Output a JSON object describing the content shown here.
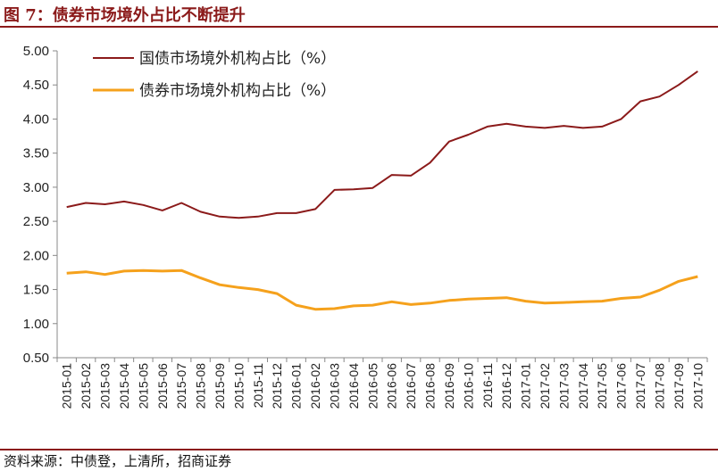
{
  "figure_title": "图 7：债券市场境外占比不断提升",
  "source_note": "资料来源：中债登，上清所，招商证券",
  "colors": {
    "brand": "#8B1A1A",
    "series_1": "#8B1A1A",
    "series_2": "#F5A11C"
  },
  "chart_data": {
    "type": "line",
    "title": "",
    "xlabel": "",
    "ylabel": "",
    "ylim": [
      0.5,
      5.0
    ],
    "yticks": [
      "0.50",
      "1.00",
      "1.50",
      "2.00",
      "2.50",
      "3.00",
      "3.50",
      "4.00",
      "4.50",
      "5.00"
    ],
    "grid": false,
    "legend_position": "top-left",
    "categories": [
      "2015-01",
      "2015-02",
      "2015-03",
      "2015-04",
      "2015-05",
      "2015-06",
      "2015-07",
      "2015-08",
      "2015-09",
      "2015-10",
      "2015-11",
      "2015-12",
      "2016-01",
      "2016-02",
      "2016-03",
      "2016-04",
      "2016-05",
      "2016-06",
      "2016-07",
      "2016-08",
      "2016-09",
      "2016-10",
      "2016-11",
      "2016-12",
      "2017-01",
      "2017-02",
      "2017-03",
      "2017-04",
      "2017-05",
      "2017-06",
      "2017-07",
      "2017-08",
      "2017-09",
      "2017-10"
    ],
    "series": [
      {
        "name": "国债市场境外机构占比（%）",
        "values": [
          2.71,
          2.77,
          2.75,
          2.79,
          2.74,
          2.66,
          2.77,
          2.64,
          2.57,
          2.55,
          2.57,
          2.62,
          2.62,
          2.68,
          2.96,
          2.97,
          2.99,
          3.18,
          3.17,
          3.36,
          3.67,
          3.77,
          3.89,
          3.93,
          3.89,
          3.87,
          3.9,
          3.87,
          3.89,
          4.0,
          4.26,
          4.33,
          4.5,
          4.7
        ]
      },
      {
        "name": "债券市场境外机构占比（%）",
        "values": [
          1.74,
          1.76,
          1.72,
          1.77,
          1.78,
          1.77,
          1.78,
          1.67,
          1.57,
          1.53,
          1.5,
          1.44,
          1.27,
          1.21,
          1.22,
          1.26,
          1.27,
          1.32,
          1.28,
          1.3,
          1.34,
          1.36,
          1.37,
          1.38,
          1.33,
          1.3,
          1.31,
          1.32,
          1.33,
          1.37,
          1.39,
          1.49,
          1.62,
          1.69
        ]
      }
    ]
  }
}
